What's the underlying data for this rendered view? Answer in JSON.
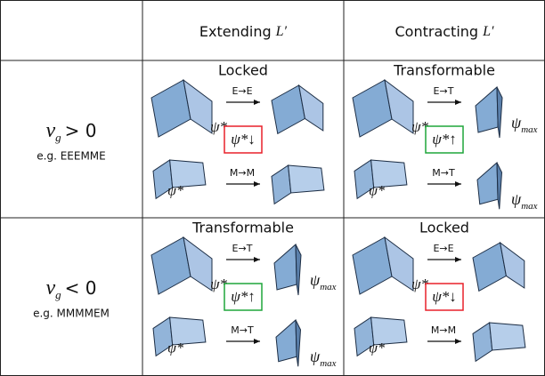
{
  "table": {
    "columns": [
      {
        "text": "Extending",
        "symbol": "L′"
      },
      {
        "text": "Contracting",
        "symbol": "L′"
      }
    ],
    "rows": [
      {
        "symbol": "ν",
        "subscript": "g",
        "relation": "> 0",
        "example": "e.g. EEEMME",
        "cells": [
          {
            "status": "Locked",
            "status_color": "#e8202a",
            "top": "E→E",
            "bottom": "M→M",
            "trend": "ψ*↓",
            "angle": "ψ*"
          },
          {
            "status": "Transformable",
            "status_color": "#1fa53a",
            "top": "E→T",
            "bottom": "M→T",
            "trend": "ψ*↑",
            "angle": "ψ*",
            "limit": {
              "symbol": "ψ",
              "subscript": "max"
            }
          }
        ]
      },
      {
        "symbol": "ν",
        "subscript": "g",
        "relation": "< 0",
        "example": "e.g. MMMMEM",
        "cells": [
          {
            "status": "Transformable",
            "status_color": "#1fa53a",
            "top": "E→T",
            "bottom": "M→T",
            "trend": "ψ*↑",
            "angle": "ψ*",
            "limit": {
              "symbol": "ψ",
              "subscript": "max"
            }
          },
          {
            "status": "Locked",
            "status_color": "#e8202a",
            "top": "E→E",
            "bottom": "M→M",
            "trend": "ψ*↓",
            "angle": "ψ*"
          }
        ]
      }
    ]
  }
}
